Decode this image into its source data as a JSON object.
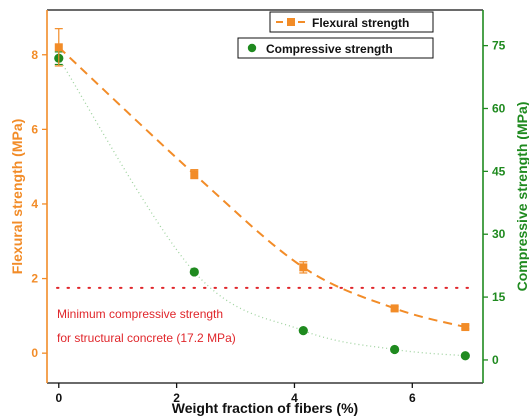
{
  "chart_data": {
    "type": "line",
    "xlabel": "Weight fraction of fibers (%)",
    "ylabel_left": "Flexural strength (MPa)",
    "ylabel_right": "Compressive strength (MPa)",
    "xlim": [
      -0.2,
      7.2
    ],
    "ylim_left": [
      -0.8,
      9.2
    ],
    "ylim_right": [
      -5.5,
      83.5
    ],
    "x_ticks": [
      0,
      2,
      4,
      6
    ],
    "y_left_ticks": [
      0,
      2,
      4,
      6,
      8
    ],
    "y_right_ticks": [
      0,
      15,
      30,
      45,
      60,
      75
    ],
    "series": [
      {
        "name": "Flexural strength",
        "axis": "left",
        "color": "#f28c28",
        "marker": "square",
        "x": [
          0,
          2.3,
          4.15,
          5.7,
          6.9
        ],
        "y": [
          8.2,
          4.8,
          2.3,
          1.2,
          0.7
        ],
        "error": [
          0.5,
          0.12,
          0.15,
          0.05,
          0.05
        ]
      },
      {
        "name": "Compressive strength",
        "axis": "right",
        "color": "#1f8a1f",
        "marker": "circle",
        "x": [
          0,
          2.3,
          4.15,
          5.7,
          6.9
        ],
        "y": [
          72,
          21,
          7,
          2.5,
          1
        ],
        "error": [
          1.5,
          0,
          0,
          0,
          0
        ]
      }
    ],
    "reference_line": {
      "axis": "right",
      "value": 17.2,
      "color": "#e0262b",
      "label_line1": "Minimum compressive strength",
      "label_line2": "for structural concrete (17.2 MPa)"
    },
    "legend": "top-right"
  }
}
